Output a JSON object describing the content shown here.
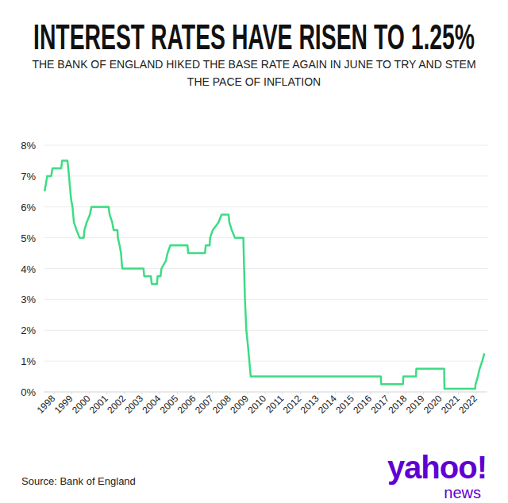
{
  "chart_data": {
    "type": "line",
    "title": "INTEREST RATES HAVE RISEN TO 1.25%",
    "subtitle": "THE BANK OF ENGLAND HIKED THE BASE RATE AGAIN IN JUNE TO TRY AND STEM THE PACE OF INFLATION",
    "source": "Source: Bank of England",
    "logo": "yahoo!",
    "logo_subtitle": "news",
    "color": "#3ddc84",
    "line_style": "solid",
    "grid": true,
    "x": [
      1997.45,
      1997.53,
      1997.6,
      1997.83,
      1997.9,
      1998.4,
      1998.45,
      1998.75,
      1998.8,
      1998.88,
      1998.96,
      1999.04,
      1999.12,
      1999.27,
      1999.44,
      1999.68,
      1999.72,
      1999.85,
      2000.03,
      2000.12,
      2001.1,
      2001.15,
      2001.3,
      2001.38,
      2001.6,
      2001.62,
      2001.72,
      2001.8,
      2001.87,
      2003.08,
      2003.12,
      2003.5,
      2003.55,
      2003.85,
      2003.88,
      2004.05,
      2004.1,
      2004.35,
      2004.45,
      2004.6,
      2005.58,
      2005.62,
      2006.58,
      2006.62,
      2006.84,
      2006.87,
      2007.02,
      2007.35,
      2007.52,
      2007.92,
      2007.96,
      2008.1,
      2008.28,
      2008.76,
      2008.78,
      2008.85,
      2008.93,
      2009.02,
      2009.1,
      2009.18,
      2016.58,
      2016.6,
      2017.84,
      2017.86,
      2018.58,
      2018.6,
      2020.18,
      2020.2,
      2021.95,
      2021.97,
      2022.1,
      2022.2,
      2022.35,
      2022.47
    ],
    "values": [
      6.5,
      6.75,
      7.0,
      7.0,
      7.25,
      7.25,
      7.5,
      7.5,
      7.25,
      6.75,
      6.25,
      6.0,
      5.5,
      5.25,
      5.0,
      5.0,
      5.25,
      5.5,
      5.75,
      6.0,
      6.0,
      5.75,
      5.5,
      5.25,
      5.25,
      5.0,
      4.75,
      4.5,
      4.0,
      4.0,
      3.75,
      3.75,
      3.5,
      3.5,
      3.75,
      3.75,
      4.0,
      4.25,
      4.5,
      4.75,
      4.75,
      4.5,
      4.5,
      4.75,
      4.75,
      5.0,
      5.25,
      5.5,
      5.75,
      5.75,
      5.5,
      5.25,
      5.0,
      5.0,
      4.5,
      3.0,
      2.0,
      1.5,
      1.0,
      0.5,
      0.5,
      0.25,
      0.25,
      0.5,
      0.5,
      0.75,
      0.75,
      0.1,
      0.1,
      0.25,
      0.5,
      0.75,
      1.0,
      1.25
    ],
    "xlim": [
      1997.4,
      2022.55
    ],
    "xticks": [
      1998,
      1999,
      2000,
      2001,
      2002,
      2003,
      2004,
      2005,
      2006,
      2007,
      2008,
      2009,
      2010,
      2011,
      2012,
      2013,
      2014,
      2015,
      2016,
      2017,
      2018,
      2019,
      2020,
      2021,
      2022
    ],
    "ylim": [
      0,
      8
    ],
    "yticks": [
      {
        "value": 0,
        "label": "0%"
      },
      {
        "value": 1,
        "label": "1%"
      },
      {
        "value": 2,
        "label": "2%"
      },
      {
        "value": 3,
        "label": "3%"
      },
      {
        "value": 4,
        "label": "4%"
      },
      {
        "value": 5,
        "label": "5%"
      },
      {
        "value": 6,
        "label": "6%"
      },
      {
        "value": 7,
        "label": "7%"
      },
      {
        "value": 8,
        "label": "8%"
      }
    ]
  }
}
